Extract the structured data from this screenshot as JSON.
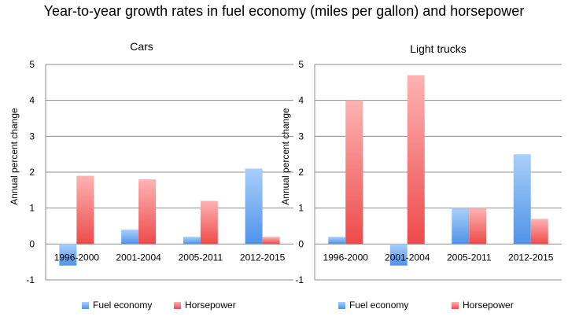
{
  "title": "Year-to-year growth rates in fuel economy (miles per gallon) and horsepower",
  "chart_data": [
    {
      "type": "bar",
      "title": "Cars",
      "categories": [
        "1996-2000",
        "2001-2004",
        "2005-2011",
        "2012-2015"
      ],
      "series": [
        {
          "name": "Fuel economy",
          "values": [
            -0.6,
            0.4,
            0.2,
            2.1
          ]
        },
        {
          "name": "Horsepower",
          "values": [
            1.9,
            1.8,
            1.2,
            0.2
          ]
        }
      ],
      "ylabel": "Annual percent change",
      "xlabel": "",
      "ylim": [
        -1,
        5
      ],
      "yticks": [
        -1,
        0,
        1,
        2,
        3,
        4,
        5
      ],
      "grid": true,
      "legend": "bottom"
    },
    {
      "type": "bar",
      "title": "Light trucks",
      "categories": [
        "1996-2000",
        "2001-2004",
        "2005-2011",
        "2012-2015"
      ],
      "series": [
        {
          "name": "Fuel economy",
          "values": [
            0.2,
            -0.6,
            1.0,
            2.5
          ]
        },
        {
          "name": "Horsepower",
          "values": [
            4.0,
            4.7,
            1.0,
            0.7
          ]
        }
      ],
      "ylabel": "Annual percent change",
      "xlabel": "",
      "ylim": [
        -1,
        5
      ],
      "yticks": [
        -1,
        0,
        1,
        2,
        3,
        4,
        5
      ],
      "grid": true,
      "legend": "bottom"
    }
  ],
  "colors": {
    "fuel_light": "#a9cffb",
    "fuel_dark": "#4f93e8",
    "hp_light": "#fdb3b3",
    "hp_dark": "#ee4a4a",
    "grid": "#8c8c8c"
  }
}
